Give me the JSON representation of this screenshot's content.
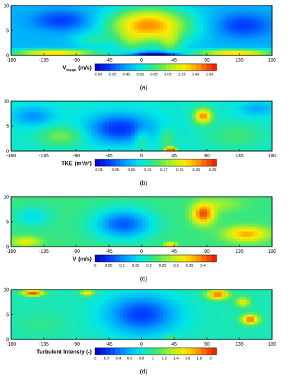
{
  "chart_data": [
    {
      "type": "heatmap",
      "panel_label": "(a)",
      "colorbar_label_main": "V",
      "colorbar_label_sub": "mean",
      "colorbar_label_unit": "(m/s)",
      "x_ticks": [
        "-180",
        "-135",
        "-90",
        "-45",
        "0",
        "45",
        "90",
        "135",
        "180"
      ],
      "y_ticks": [
        "0",
        "5",
        "10"
      ],
      "xlim": [
        -180,
        180
      ],
      "ylim": [
        0,
        10
      ],
      "colorbar_ticks": [
        "0.05",
        "0.25",
        "0.45",
        "0.65",
        "0.85",
        "1.05",
        "1.25",
        "1.45",
        "1.65"
      ],
      "vmin": 0.0,
      "vmax": 1.75,
      "base": 0.5,
      "blobs": [
        {
          "x": 10,
          "y": 6.0,
          "sx": 55,
          "sy": 3.5,
          "v": 1.0
        },
        {
          "x": 40,
          "y": 2.5,
          "sx": 14,
          "sy": 2.0,
          "v": 0.3
        },
        {
          "x": -15,
          "y": 2.5,
          "sx": 18,
          "sy": 2.0,
          "v": 0.2
        },
        {
          "x": -120,
          "y": 0.5,
          "sx": 60,
          "sy": 0.7,
          "v": 0.9
        },
        {
          "x": 130,
          "y": 0.5,
          "sx": 55,
          "sy": 0.7,
          "v": 0.9
        },
        {
          "x": 20,
          "y": 0.3,
          "sx": 30,
          "sy": 0.4,
          "v": -0.7
        },
        {
          "x": -110,
          "y": 7.0,
          "sx": 40,
          "sy": 2.0,
          "v": -0.3
        },
        {
          "x": 140,
          "y": 6.0,
          "sx": 40,
          "sy": 2.5,
          "v": -0.3
        },
        {
          "x": -70,
          "y": 3.0,
          "sx": 25,
          "sy": 1.5,
          "v": 0.2
        }
      ]
    },
    {
      "type": "heatmap",
      "panel_label": "(b)",
      "colorbar_label_main": "TKE",
      "colorbar_label_sub": "",
      "colorbar_label_unit": "(m²/s²)",
      "x_ticks": [
        "-180",
        "-135",
        "-90",
        "-45",
        "0",
        "45",
        "90",
        "135",
        "180"
      ],
      "y_ticks": [
        "0",
        "5",
        "10"
      ],
      "xlim": [
        -180,
        180
      ],
      "ylim": [
        0,
        10
      ],
      "colorbar_ticks": [
        "0.01",
        "0.05",
        "0.09",
        "0.13",
        "0.17",
        "0.21",
        "0.25",
        "0.29"
      ],
      "vmin": 0.0,
      "vmax": 0.3,
      "base": 0.12,
      "blobs": [
        {
          "x": -30,
          "y": 4.5,
          "sx": 45,
          "sy": 3.0,
          "v": -0.09
        },
        {
          "x": 85,
          "y": 7.0,
          "sx": 12,
          "sy": 1.5,
          "v": 0.14
        },
        {
          "x": -150,
          "y": 7.0,
          "sx": 30,
          "sy": 2.0,
          "v": -0.05
        },
        {
          "x": -110,
          "y": 3.0,
          "sx": 30,
          "sy": 2.0,
          "v": 0.05
        },
        {
          "x": 130,
          "y": 3.0,
          "sx": 40,
          "sy": 2.5,
          "v": 0.03
        },
        {
          "x": 0,
          "y": 2.5,
          "sx": 10,
          "sy": 2.0,
          "v": 0.04
        },
        {
          "x": 35,
          "y": 2.5,
          "sx": 10,
          "sy": 2.0,
          "v": 0.04
        },
        {
          "x": 40,
          "y": 0.3,
          "sx": 8,
          "sy": 0.5,
          "v": 0.15
        },
        {
          "x": 160,
          "y": 8.5,
          "sx": 25,
          "sy": 1.5,
          "v": -0.04
        }
      ]
    },
    {
      "type": "heatmap",
      "panel_label": "(c)",
      "colorbar_label_main": "V",
      "colorbar_label_sub": "",
      "colorbar_label_unit": "(m/s)",
      "x_ticks": [
        "-180",
        "-135",
        "-90",
        "-45",
        "0",
        "45",
        "90",
        "135",
        "180"
      ],
      "y_ticks": [
        "0",
        "5",
        "10"
      ],
      "xlim": [
        -180,
        180
      ],
      "ylim": [
        0,
        10
      ],
      "colorbar_ticks": [
        "0",
        "0.05",
        "0.1",
        "0.15",
        "0.2",
        "0.25",
        "0.3",
        "0.35",
        "0.4"
      ],
      "vmin": 0.0,
      "vmax": 0.45,
      "base": 0.22,
      "blobs": [
        {
          "x": -25,
          "y": 4.5,
          "sx": 40,
          "sy": 3.0,
          "v": -0.15
        },
        {
          "x": 85,
          "y": 6.5,
          "sx": 15,
          "sy": 2.0,
          "v": 0.2
        },
        {
          "x": 145,
          "y": 2.5,
          "sx": 30,
          "sy": 1.5,
          "v": 0.15
        },
        {
          "x": -150,
          "y": 6.0,
          "sx": 25,
          "sy": 2.0,
          "v": -0.06
        },
        {
          "x": -160,
          "y": 1.0,
          "sx": 20,
          "sy": 1.0,
          "v": 0.1
        },
        {
          "x": 40,
          "y": 0.4,
          "sx": 8,
          "sy": 0.5,
          "v": 0.15
        },
        {
          "x": 110,
          "y": 8.5,
          "sx": 30,
          "sy": 1.5,
          "v": 0.05
        }
      ]
    },
    {
      "type": "heatmap",
      "panel_label": "(d)",
      "colorbar_label_main": "Turbulent Intensty (-)",
      "colorbar_label_sub": "",
      "colorbar_label_unit": "",
      "x_ticks": [
        "-180",
        "-135",
        "-90",
        "-45",
        "0",
        "45",
        "90",
        "135",
        "180"
      ],
      "y_ticks": [
        "0",
        "5",
        "10"
      ],
      "xlim": [
        -180,
        180
      ],
      "ylim": [
        0,
        10
      ],
      "colorbar_ticks": [
        "0",
        "0.2",
        "0.4",
        "0.6",
        "0.8",
        "1",
        "1.2",
        "1.4",
        "1.6",
        "1.8",
        "2"
      ],
      "vmin": 0.0,
      "vmax": 2.1,
      "base": 0.9,
      "blobs": [
        {
          "x": 0,
          "y": 5.0,
          "sx": 50,
          "sy": 4.0,
          "v": -0.65
        },
        {
          "x": -150,
          "y": 9.3,
          "sx": 15,
          "sy": 0.6,
          "v": 1.1
        },
        {
          "x": -75,
          "y": 9.3,
          "sx": 10,
          "sy": 0.6,
          "v": 0.7
        },
        {
          "x": 105,
          "y": 9.0,
          "sx": 15,
          "sy": 1.0,
          "v": 1.0
        },
        {
          "x": 150,
          "y": 4.0,
          "sx": 12,
          "sy": 1.0,
          "v": 1.0
        },
        {
          "x": 140,
          "y": 7.5,
          "sx": 10,
          "sy": 1.0,
          "v": 0.6
        },
        {
          "x": -140,
          "y": 3.0,
          "sx": 35,
          "sy": 2.0,
          "v": 0.1
        },
        {
          "x": 40,
          "y": 0.4,
          "sx": 8,
          "sy": 0.5,
          "v": 0.3
        }
      ]
    }
  ]
}
